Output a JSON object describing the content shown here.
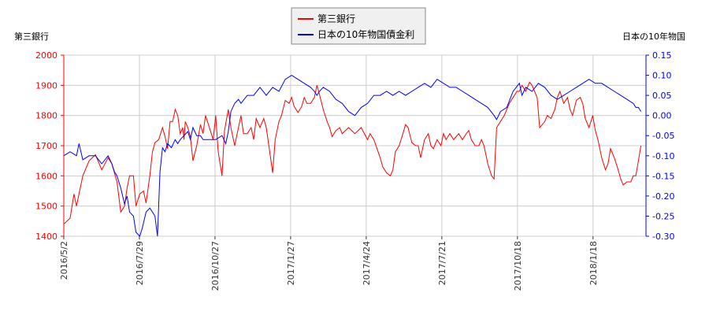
{
  "chart_data": {
    "type": "line",
    "left_axis_label": "第三銀行",
    "right_axis_label": "日本の10年物国",
    "legend": [
      {
        "label": "第三銀行",
        "color": "#ff0000"
      },
      {
        "label": "日本の10年物国債金利",
        "color": "#0000ff"
      }
    ],
    "legend_position": "top-center",
    "grid": true,
    "x_ticks": [
      "2016/5/2",
      "2016/7/29",
      "2016/10/27",
      "2017/1/27",
      "2017/4/24",
      "2017/7/21",
      "2017/10/18",
      "2018/1/18"
    ],
    "y_left": {
      "min": 1400,
      "max": 2000,
      "ticks": [
        2000,
        1900,
        1800,
        1700,
        1600,
        1500,
        1400
      ]
    },
    "y_right": {
      "min": -0.3,
      "max": 0.15,
      "ticks": [
        "0.15",
        "0.10",
        "0.05",
        "0.00",
        "-0.05",
        "-0.10",
        "-0.15",
        "-0.20",
        "-0.25",
        "-0.30"
      ]
    },
    "series": [
      {
        "name": "第三銀行",
        "axis": "left",
        "color": "#ff0000",
        "points": [
          [
            0,
            1440
          ],
          [
            0.05,
            1460
          ],
          [
            0.08,
            1540
          ],
          [
            0.1,
            1500
          ],
          [
            0.15,
            1600
          ],
          [
            0.2,
            1650
          ],
          [
            0.25,
            1670
          ],
          [
            0.3,
            1620
          ],
          [
            0.35,
            1660
          ],
          [
            0.38,
            1640
          ],
          [
            0.42,
            1580
          ],
          [
            0.45,
            1480
          ],
          [
            0.48,
            1500
          ],
          [
            0.5,
            1560
          ],
          [
            0.52,
            1600
          ],
          [
            0.55,
            1600
          ],
          [
            0.57,
            1500
          ],
          [
            0.6,
            1540
          ],
          [
            0.63,
            1550
          ],
          [
            0.65,
            1510
          ],
          [
            0.68,
            1600
          ],
          [
            0.7,
            1680
          ],
          [
            0.72,
            1710
          ],
          [
            0.75,
            1720
          ],
          [
            0.78,
            1760
          ],
          [
            0.8,
            1730
          ],
          [
            0.82,
            1690
          ],
          [
            0.84,
            1780
          ],
          [
            0.86,
            1780
          ],
          [
            0.88,
            1820
          ],
          [
            0.9,
            1800
          ],
          [
            0.92,
            1740
          ],
          [
            0.94,
            1760
          ],
          [
            0.95,
            1720
          ],
          [
            0.96,
            1780
          ],
          [
            0.98,
            1760
          ],
          [
            1.0,
            1730
          ],
          [
            1.02,
            1650
          ],
          [
            1.05,
            1700
          ],
          [
            1.08,
            1770
          ],
          [
            1.1,
            1740
          ],
          [
            1.12,
            1800
          ],
          [
            1.15,
            1760
          ],
          [
            1.18,
            1720
          ],
          [
            1.2,
            1800
          ],
          [
            1.22,
            1680
          ],
          [
            1.25,
            1600
          ],
          [
            1.27,
            1750
          ],
          [
            1.3,
            1820
          ],
          [
            1.32,
            1760
          ],
          [
            1.35,
            1700
          ],
          [
            1.38,
            1760
          ],
          [
            1.4,
            1800
          ],
          [
            1.42,
            1740
          ],
          [
            1.45,
            1740
          ],
          [
            1.48,
            1760
          ],
          [
            1.5,
            1720
          ],
          [
            1.52,
            1790
          ],
          [
            1.55,
            1760
          ],
          [
            1.58,
            1790
          ],
          [
            1.6,
            1760
          ],
          [
            1.62,
            1700
          ],
          [
            1.65,
            1610
          ],
          [
            1.67,
            1720
          ],
          [
            1.7,
            1780
          ],
          [
            1.72,
            1800
          ],
          [
            1.75,
            1850
          ],
          [
            1.78,
            1840
          ],
          [
            1.8,
            1860
          ],
          [
            1.82,
            1830
          ],
          [
            1.85,
            1810
          ],
          [
            1.88,
            1830
          ],
          [
            1.9,
            1860
          ],
          [
            1.92,
            1840
          ],
          [
            1.95,
            1840
          ],
          [
            1.98,
            1860
          ],
          [
            2.0,
            1900
          ],
          [
            2.02,
            1870
          ],
          [
            2.05,
            1820
          ],
          [
            2.08,
            1780
          ],
          [
            2.1,
            1760
          ],
          [
            2.12,
            1730
          ],
          [
            2.15,
            1750
          ],
          [
            2.18,
            1760
          ],
          [
            2.2,
            1740
          ],
          [
            2.25,
            1760
          ],
          [
            2.3,
            1740
          ],
          [
            2.35,
            1760
          ],
          [
            2.4,
            1720
          ],
          [
            2.42,
            1740
          ],
          [
            2.45,
            1720
          ],
          [
            2.5,
            1660
          ],
          [
            2.52,
            1630
          ],
          [
            2.55,
            1610
          ],
          [
            2.58,
            1600
          ],
          [
            2.6,
            1620
          ],
          [
            2.62,
            1680
          ],
          [
            2.65,
            1700
          ],
          [
            2.68,
            1740
          ],
          [
            2.7,
            1770
          ],
          [
            2.72,
            1760
          ],
          [
            2.75,
            1710
          ],
          [
            2.78,
            1700
          ],
          [
            2.8,
            1700
          ],
          [
            2.82,
            1660
          ],
          [
            2.85,
            1720
          ],
          [
            2.88,
            1740
          ],
          [
            2.9,
            1700
          ],
          [
            2.92,
            1690
          ],
          [
            2.95,
            1720
          ],
          [
            2.98,
            1700
          ],
          [
            3.0,
            1740
          ],
          [
            3.02,
            1720
          ],
          [
            3.05,
            1740
          ],
          [
            3.08,
            1720
          ],
          [
            3.1,
            1730
          ],
          [
            3.12,
            1740
          ],
          [
            3.15,
            1720
          ],
          [
            3.18,
            1740
          ],
          [
            3.2,
            1750
          ],
          [
            3.22,
            1720
          ],
          [
            3.25,
            1700
          ],
          [
            3.28,
            1700
          ],
          [
            3.3,
            1720
          ],
          [
            3.32,
            1700
          ],
          [
            3.35,
            1640
          ],
          [
            3.38,
            1600
          ],
          [
            3.4,
            1590
          ],
          [
            3.42,
            1760
          ],
          [
            3.45,
            1780
          ],
          [
            3.48,
            1800
          ],
          [
            3.5,
            1820
          ],
          [
            3.52,
            1840
          ],
          [
            3.55,
            1860
          ],
          [
            3.58,
            1880
          ],
          [
            3.6,
            1880
          ],
          [
            3.62,
            1900
          ],
          [
            3.65,
            1880
          ],
          [
            3.68,
            1910
          ],
          [
            3.7,
            1900
          ],
          [
            3.72,
            1880
          ],
          [
            3.74,
            1860
          ],
          [
            3.76,
            1760
          ],
          [
            3.78,
            1770
          ],
          [
            3.8,
            1780
          ],
          [
            3.82,
            1800
          ],
          [
            3.85,
            1790
          ],
          [
            3.88,
            1820
          ],
          [
            3.9,
            1860
          ],
          [
            3.92,
            1880
          ],
          [
            3.95,
            1840
          ],
          [
            3.98,
            1860
          ],
          [
            4.0,
            1820
          ],
          [
            4.02,
            1800
          ],
          [
            4.05,
            1850
          ],
          [
            4.08,
            1860
          ],
          [
            4.1,
            1840
          ],
          [
            4.12,
            1790
          ],
          [
            4.15,
            1760
          ],
          [
            4.18,
            1800
          ],
          [
            4.2,
            1750
          ],
          [
            4.22,
            1720
          ],
          [
            4.25,
            1660
          ],
          [
            4.28,
            1620
          ],
          [
            4.3,
            1640
          ],
          [
            4.32,
            1690
          ],
          [
            4.35,
            1660
          ],
          [
            4.38,
            1620
          ],
          [
            4.4,
            1590
          ],
          [
            4.42,
            1570
          ],
          [
            4.45,
            1580
          ],
          [
            4.48,
            1580
          ],
          [
            4.5,
            1600
          ],
          [
            4.52,
            1600
          ],
          [
            4.54,
            1650
          ],
          [
            4.56,
            1700
          ]
        ]
      },
      {
        "name": "日本の10年物国債金利",
        "axis": "right",
        "color": "#0000ff",
        "points": [
          [
            0,
            -0.1
          ],
          [
            0.05,
            -0.09
          ],
          [
            0.1,
            -0.1
          ],
          [
            0.12,
            -0.07
          ],
          [
            0.15,
            -0.11
          ],
          [
            0.2,
            -0.1
          ],
          [
            0.25,
            -0.1
          ],
          [
            0.3,
            -0.12
          ],
          [
            0.35,
            -0.1
          ],
          [
            0.38,
            -0.12
          ],
          [
            0.4,
            -0.14
          ],
          [
            0.42,
            -0.15
          ],
          [
            0.45,
            -0.18
          ],
          [
            0.48,
            -0.22
          ],
          [
            0.5,
            -0.2
          ],
          [
            0.52,
            -0.24
          ],
          [
            0.55,
            -0.25
          ],
          [
            0.57,
            -0.29
          ],
          [
            0.6,
            -0.3
          ],
          [
            0.62,
            -0.28
          ],
          [
            0.65,
            -0.24
          ],
          [
            0.68,
            -0.23
          ],
          [
            0.7,
            -0.24
          ],
          [
            0.72,
            -0.25
          ],
          [
            0.74,
            -0.3
          ],
          [
            0.76,
            -0.14
          ],
          [
            0.78,
            -0.08
          ],
          [
            0.8,
            -0.09
          ],
          [
            0.82,
            -0.07
          ],
          [
            0.85,
            -0.08
          ],
          [
            0.88,
            -0.06
          ],
          [
            0.9,
            -0.07
          ],
          [
            0.92,
            -0.06
          ],
          [
            0.95,
            -0.05
          ],
          [
            0.98,
            -0.04
          ],
          [
            1.0,
            -0.06
          ],
          [
            1.02,
            -0.03
          ],
          [
            1.05,
            -0.05
          ],
          [
            1.08,
            -0.05
          ],
          [
            1.1,
            -0.06
          ],
          [
            1.15,
            -0.06
          ],
          [
            1.2,
            -0.06
          ],
          [
            1.25,
            -0.05
          ],
          [
            1.28,
            -0.07
          ],
          [
            1.3,
            -0.04
          ],
          [
            1.32,
            0.01
          ],
          [
            1.35,
            0.03
          ],
          [
            1.38,
            0.04
          ],
          [
            1.4,
            0.03
          ],
          [
            1.45,
            0.05
          ],
          [
            1.5,
            0.05
          ],
          [
            1.55,
            0.07
          ],
          [
            1.6,
            0.05
          ],
          [
            1.65,
            0.07
          ],
          [
            1.7,
            0.06
          ],
          [
            1.75,
            0.09
          ],
          [
            1.8,
            0.1
          ],
          [
            1.85,
            0.09
          ],
          [
            1.9,
            0.08
          ],
          [
            1.95,
            0.07
          ],
          [
            1.98,
            0.06
          ],
          [
            2.0,
            0.05
          ],
          [
            2.02,
            0.06
          ],
          [
            2.05,
            0.07
          ],
          [
            2.1,
            0.06
          ],
          [
            2.15,
            0.04
          ],
          [
            2.2,
            0.03
          ],
          [
            2.25,
            0.01
          ],
          [
            2.3,
            0.0
          ],
          [
            2.35,
            0.02
          ],
          [
            2.4,
            0.03
          ],
          [
            2.45,
            0.05
          ],
          [
            2.5,
            0.05
          ],
          [
            2.55,
            0.06
          ],
          [
            2.6,
            0.05
          ],
          [
            2.65,
            0.06
          ],
          [
            2.7,
            0.05
          ],
          [
            2.75,
            0.06
          ],
          [
            2.8,
            0.07
          ],
          [
            2.85,
            0.08
          ],
          [
            2.9,
            0.07
          ],
          [
            2.95,
            0.09
          ],
          [
            3.0,
            0.08
          ],
          [
            3.05,
            0.07
          ],
          [
            3.1,
            0.07
          ],
          [
            3.15,
            0.06
          ],
          [
            3.2,
            0.05
          ],
          [
            3.25,
            0.04
          ],
          [
            3.3,
            0.03
          ],
          [
            3.35,
            0.02
          ],
          [
            3.4,
            0.0
          ],
          [
            3.42,
            -0.01
          ],
          [
            3.45,
            0.01
          ],
          [
            3.5,
            0.02
          ],
          [
            3.55,
            0.06
          ],
          [
            3.6,
            0.08
          ],
          [
            3.62,
            0.05
          ],
          [
            3.65,
            0.07
          ],
          [
            3.7,
            0.06
          ],
          [
            3.75,
            0.08
          ],
          [
            3.8,
            0.07
          ],
          [
            3.85,
            0.05
          ],
          [
            3.9,
            0.04
          ],
          [
            3.95,
            0.05
          ],
          [
            4.0,
            0.06
          ],
          [
            4.05,
            0.07
          ],
          [
            4.1,
            0.08
          ],
          [
            4.15,
            0.09
          ],
          [
            4.2,
            0.08
          ],
          [
            4.25,
            0.08
          ],
          [
            4.3,
            0.07
          ],
          [
            4.35,
            0.06
          ],
          [
            4.4,
            0.05
          ],
          [
            4.45,
            0.04
          ],
          [
            4.5,
            0.03
          ],
          [
            4.52,
            0.02
          ],
          [
            4.54,
            0.02
          ],
          [
            4.56,
            0.01
          ]
        ]
      }
    ]
  }
}
